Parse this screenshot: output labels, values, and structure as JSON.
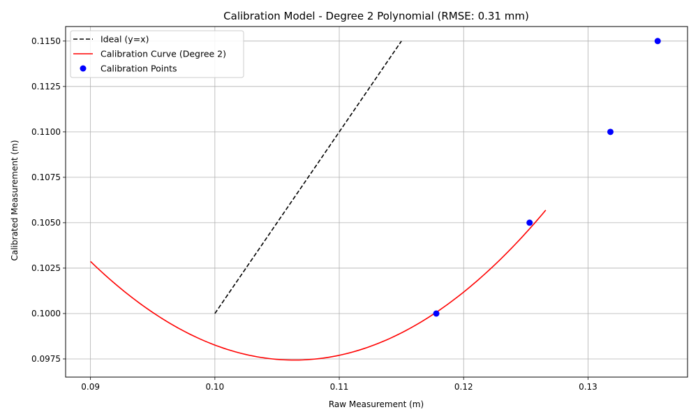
{
  "chart_data": {
    "type": "line",
    "title": "Calibration Model - Degree 2 Polynomial (RMSE: 0.31 mm)",
    "xlabel": "Raw Measurement (m)",
    "ylabel": "Calibrated Measurement (m)",
    "xlim": [
      0.088,
      0.138
    ],
    "ylim": [
      0.0965,
      0.1158
    ],
    "x_ticks": [
      "0.09",
      "0.10",
      "0.11",
      "0.12",
      "0.13"
    ],
    "x_tick_values": [
      0.09,
      0.1,
      0.11,
      0.12,
      0.13
    ],
    "y_ticks": [
      "0.0975",
      "0.1000",
      "0.1025",
      "0.1050",
      "0.1075",
      "0.1100",
      "0.1125",
      "0.1150"
    ],
    "y_tick_values": [
      0.0975,
      0.1,
      0.1025,
      0.105,
      0.1075,
      0.11,
      0.1125,
      0.115
    ],
    "grid": true,
    "legend_position": "top-left",
    "series": [
      {
        "name": "Ideal (y=x)",
        "kind": "line",
        "style": "dashed",
        "color": "#000000",
        "x": [
          0.1,
          0.115
        ],
        "y": [
          0.1,
          0.115
        ]
      },
      {
        "name": "Calibration Curve (Degree 2)",
        "kind": "line",
        "style": "solid",
        "color": "#ff0000",
        "x": [
          0.09,
          0.094,
          0.098,
          0.102,
          0.106,
          0.11,
          0.114,
          0.118,
          0.122,
          0.1266
        ],
        "y": [
          0.10265,
          0.10068,
          0.09905,
          0.09795,
          0.09741,
          0.09755,
          0.0984,
          0.10012,
          0.1026,
          0.10565
        ]
      },
      {
        "name": "Calibration Points",
        "kind": "scatter",
        "color": "#0000ff",
        "x": [
          0.1178,
          0.1253,
          0.1318,
          0.1356
        ],
        "y": [
          0.1,
          0.105,
          0.11,
          0.115
        ]
      }
    ]
  }
}
